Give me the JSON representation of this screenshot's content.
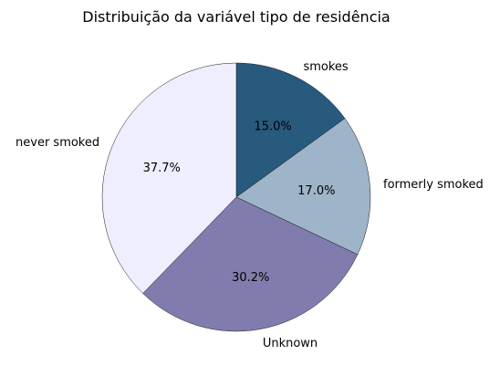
{
  "chart_data": {
    "type": "pie",
    "title": "Distribuição da variável tipo de residência",
    "slices": [
      {
        "label": "smokes",
        "value": 15.0,
        "pct_text": "15.0%",
        "color": "#285a7e"
      },
      {
        "label": "formerly smoked",
        "value": 17.0,
        "pct_text": "17.0%",
        "color": "#9eb4c8"
      },
      {
        "label": "Unknown",
        "value": 30.2,
        "pct_text": "30.2%",
        "color": "#807dae"
      },
      {
        "label": "never smoked",
        "value": 37.7,
        "pct_text": "37.7%",
        "color": "#eeeeff"
      }
    ],
    "start_angle": 90,
    "direction": "clockwise"
  }
}
